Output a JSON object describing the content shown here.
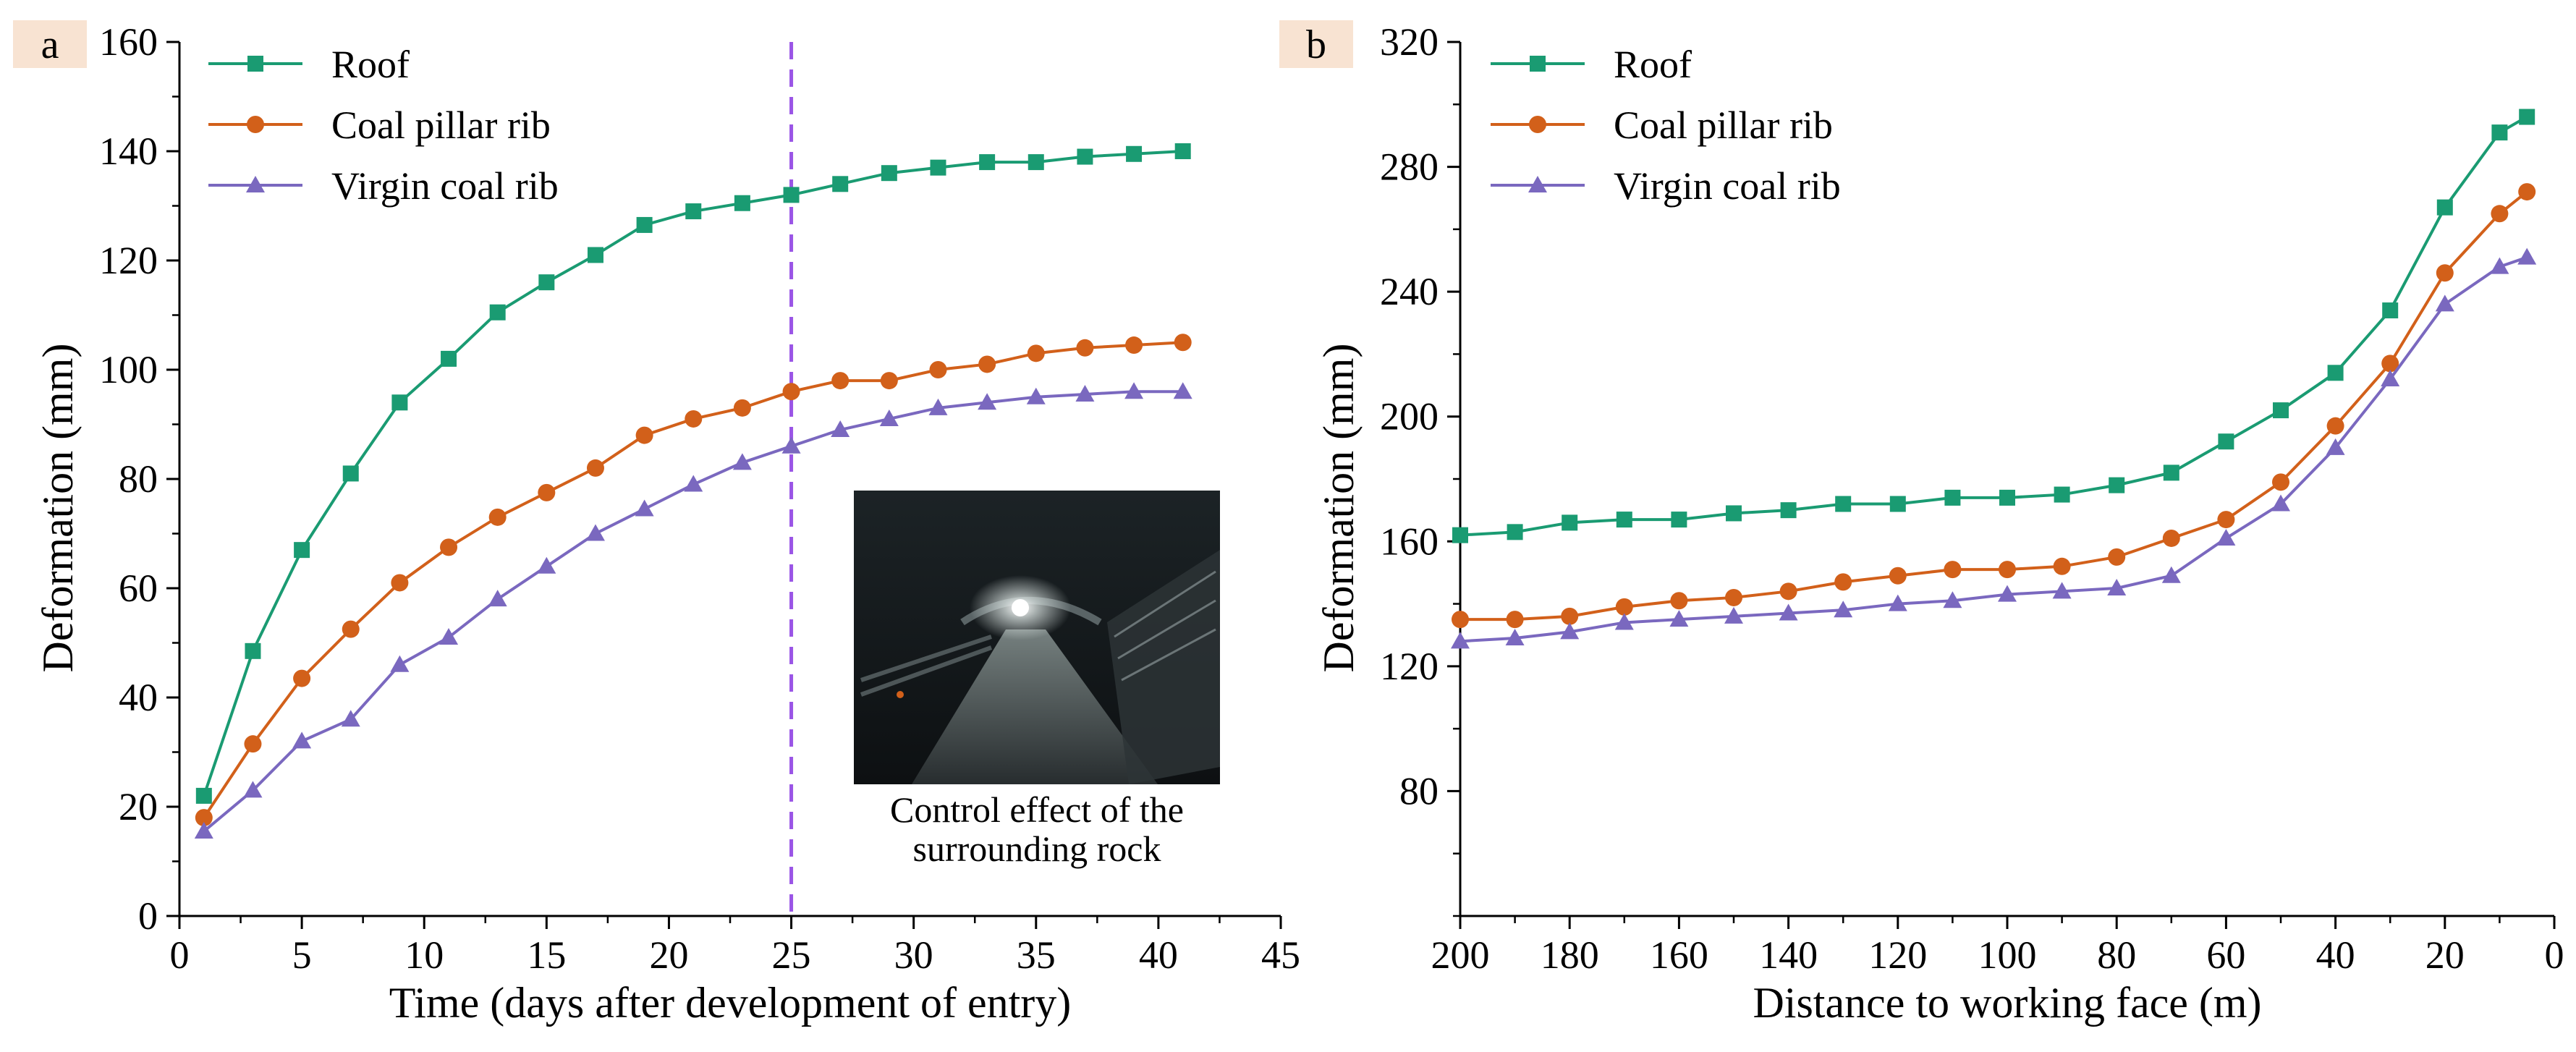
{
  "colors": {
    "roof": "#1a9b72",
    "coal_pillar_rib": "#d2601a",
    "virgin_coal_rib": "#7a68bf",
    "marker_line": "#9a55e6",
    "panel_tag_bg": "#f8e3d2"
  },
  "chart_data": [
    {
      "panel": "a",
      "type": "line",
      "title": "",
      "xlabel": "Time (days after development of entry)",
      "ylabel": "Deformation (mm)",
      "xlim": [
        0,
        45
      ],
      "ylim": [
        0,
        160
      ],
      "xticks": [
        "0",
        "5",
        "10",
        "15",
        "20",
        "25",
        "30",
        "35",
        "40",
        "45"
      ],
      "yticks": [
        "0",
        "20",
        "40",
        "60",
        "80",
        "100",
        "120",
        "140",
        "160"
      ],
      "grid": false,
      "legend": "top-left",
      "x": [
        1,
        3,
        5,
        7,
        9,
        11,
        13,
        15,
        17,
        19,
        21,
        23,
        25,
        27,
        29,
        31,
        33,
        35,
        37,
        39,
        41
      ],
      "series": [
        {
          "name": "Roof",
          "marker": "square",
          "values": [
            22,
            48.5,
            67,
            81,
            94,
            102,
            110.5,
            116,
            121,
            126.5,
            129,
            130.5,
            132,
            134,
            136,
            137,
            138,
            138,
            139,
            139.5,
            140
          ]
        },
        {
          "name": "Coal pillar rib",
          "marker": "circle",
          "values": [
            18,
            31.5,
            43.5,
            52.5,
            61,
            67.5,
            73,
            77.5,
            82,
            88,
            91,
            93,
            96,
            98,
            98,
            100,
            101,
            103,
            104,
            104.5,
            105
          ]
        },
        {
          "name": "Virgin coal rib",
          "marker": "triangle",
          "values": [
            15.5,
            23,
            32,
            36,
            46,
            51,
            58,
            64,
            70,
            74.5,
            79,
            83,
            86,
            89,
            91,
            93,
            94,
            95,
            95.5,
            96,
            96
          ]
        }
      ],
      "annotations": {
        "vertical_line_x": 25,
        "inset_caption": [
          "Control effect of the",
          "surrounding rock"
        ]
      }
    },
    {
      "panel": "b",
      "type": "line",
      "title": "",
      "xlabel": "Distance to working face (m)",
      "ylabel": "Deformation (mm)",
      "xlim": [
        200,
        0
      ],
      "ylim": [
        40,
        320
      ],
      "xticks": [
        "200",
        "180",
        "160",
        "140",
        "120",
        "100",
        "80",
        "60",
        "40",
        "20",
        "0"
      ],
      "yticks": [
        "80",
        "120",
        "160",
        "200",
        "240",
        "280",
        "320"
      ],
      "grid": false,
      "legend": "top-left",
      "x": [
        200,
        190,
        180,
        170,
        160,
        150,
        140,
        130,
        120,
        110,
        100,
        90,
        80,
        70,
        60,
        50,
        40,
        30,
        20,
        10,
        5
      ],
      "series": [
        {
          "name": "Roof",
          "marker": "square",
          "values": [
            162,
            163,
            166,
            167,
            167,
            169,
            170,
            172,
            172,
            174,
            174,
            175,
            178,
            182,
            192,
            202,
            214,
            234,
            267,
            291,
            296
          ]
        },
        {
          "name": "Coal pillar rib",
          "marker": "circle",
          "values": [
            135,
            135,
            136,
            139,
            141,
            142,
            144,
            147,
            149,
            151,
            151,
            152,
            155,
            161,
            167,
            179,
            197,
            217,
            246,
            265,
            272
          ]
        },
        {
          "name": "Virgin coal rib",
          "marker": "triangle",
          "values": [
            128,
            129,
            131,
            134,
            135,
            136,
            137,
            138,
            140,
            141,
            143,
            144,
            145,
            149,
            161,
            172,
            190,
            212,
            236,
            248,
            251
          ]
        }
      ]
    }
  ]
}
